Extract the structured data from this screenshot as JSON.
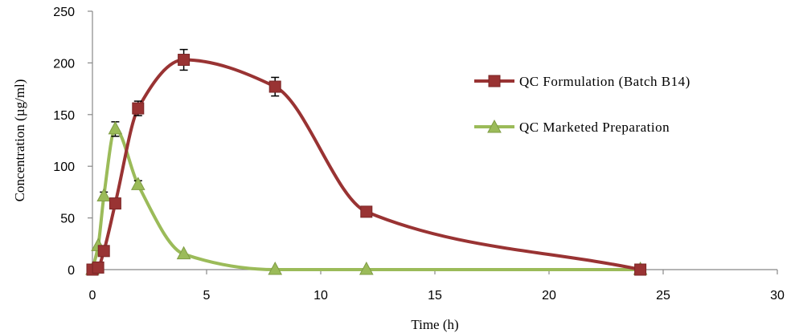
{
  "chart_data": {
    "type": "line",
    "xlabel": "Time (h)",
    "ylabel": "Concentration (µg/ml)",
    "xlim": [
      0,
      30
    ],
    "ylim": [
      0,
      250
    ],
    "x_ticks": [
      0,
      5,
      10,
      15,
      20,
      25,
      30
    ],
    "y_ticks": [
      0,
      50,
      100,
      150,
      200,
      250
    ],
    "grid": false,
    "legend_position": "right",
    "series": [
      {
        "name": "QC Formulation (Batch B14)",
        "color": "#993333",
        "marker": "square",
        "x": [
          0,
          0.25,
          0.5,
          1,
          2,
          4,
          8,
          12,
          24
        ],
        "y": [
          0,
          2,
          18,
          64,
          156,
          203,
          177,
          56,
          0
        ],
        "error": [
          0,
          0,
          0,
          0,
          7,
          10,
          9,
          0,
          0
        ]
      },
      {
        "name": "QC Marketed Preparation",
        "color": "#9bbb59",
        "marker": "triangle",
        "x": [
          0,
          0.25,
          0.5,
          1,
          2,
          4,
          8,
          12,
          24
        ],
        "y": [
          0,
          23,
          71,
          136,
          82,
          15,
          0,
          0,
          0
        ],
        "error": [
          0,
          0,
          4,
          7,
          4,
          0,
          0,
          0,
          0
        ]
      }
    ]
  }
}
